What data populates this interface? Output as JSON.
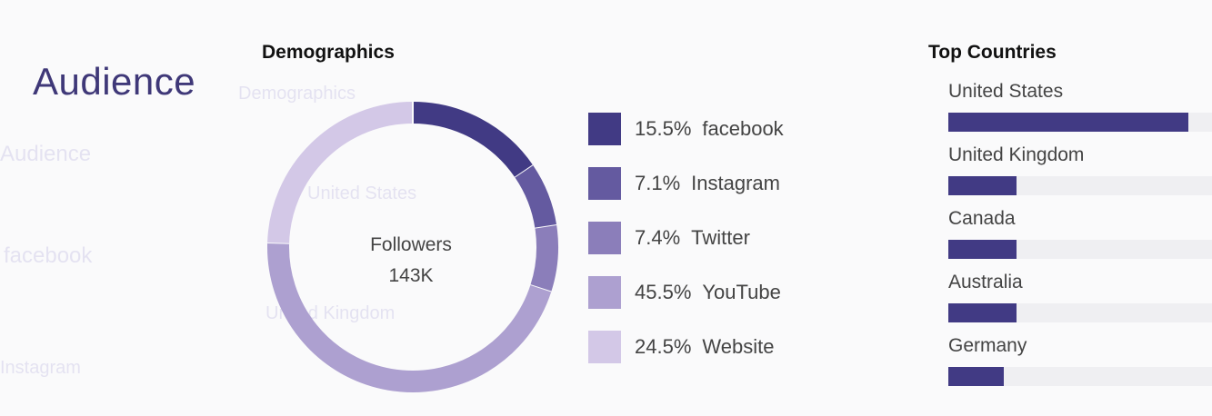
{
  "page": {
    "title": "Audience"
  },
  "demographics": {
    "heading": "Demographics",
    "center_label": "Followers",
    "center_value": "143K"
  },
  "top_countries": {
    "heading": "Top Countries",
    "max_value": 100,
    "items": [
      {
        "name": "United States",
        "value": 91
      },
      {
        "name": "United Kingdom",
        "value": 26
      },
      {
        "name": "Canada",
        "value": 26
      },
      {
        "name": "Australia",
        "value": 26
      },
      {
        "name": "Germany",
        "value": 21
      }
    ],
    "bar_color": "#413a84",
    "track_color": "#efeff2"
  },
  "chart_data": [
    {
      "type": "pie",
      "variant": "donut",
      "title": "Demographics",
      "categories": [
        "facebook",
        "Instagram",
        "Twitter",
        "YouTube",
        "Website"
      ],
      "values": [
        15.5,
        7.1,
        7.4,
        45.5,
        24.5
      ],
      "labels": [
        "15.5%",
        "7.1%",
        "7.4%",
        "45.5%",
        "24.5%"
      ],
      "colors": [
        "#413a84",
        "#645aa0",
        "#8b7eba",
        "#ada0d0",
        "#d3c8e7"
      ],
      "center_text": [
        "Followers",
        "143K"
      ],
      "legend_placement": "right"
    },
    {
      "type": "bar",
      "orientation": "horizontal",
      "title": "Top Countries",
      "categories": [
        "United States",
        "United Kingdom",
        "Canada",
        "Australia",
        "Germany"
      ],
      "values": [
        91,
        26,
        26,
        26,
        21
      ],
      "xlim": [
        0,
        100
      ]
    }
  ]
}
